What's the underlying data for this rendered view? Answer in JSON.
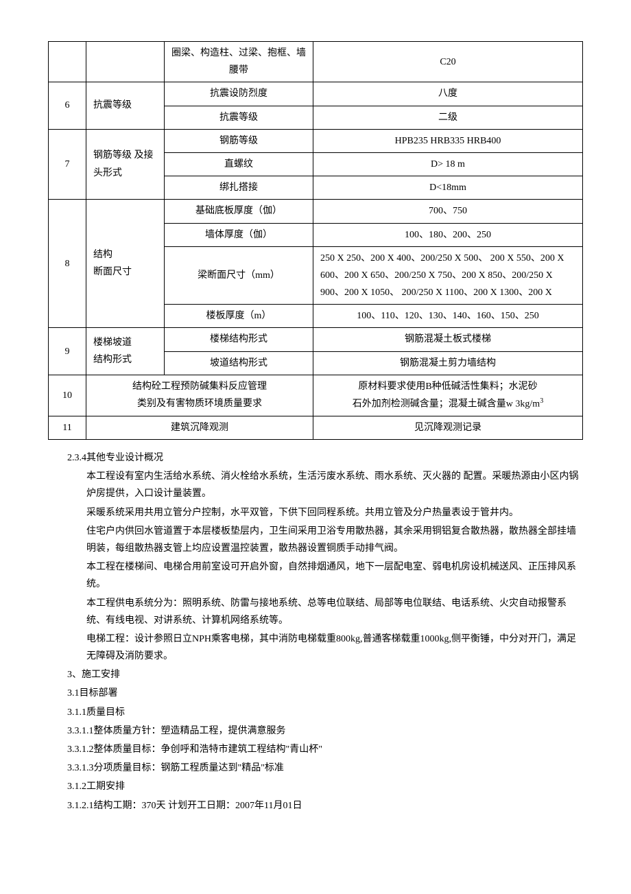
{
  "table": {
    "rows": [
      {
        "num": "",
        "cat": "",
        "sub": "圈梁、构造柱、过梁、抱框、墙腰带",
        "val": "C20"
      },
      {
        "num": "6",
        "cat": "抗震等级",
        "rowspan": 2,
        "sub": "抗震设防烈度",
        "val": "八度"
      },
      {
        "sub": "抗震等级",
        "val": "二级"
      },
      {
        "num": "7",
        "cat": "钢筋等级 及接头形式",
        "rowspan": 3,
        "sub": "钢筋等级",
        "val": "HPB235 HRB335 HRB400"
      },
      {
        "sub": "直螺纹",
        "val": "D> 18 m"
      },
      {
        "sub": "绑扎搭接",
        "val": "D<18mm"
      },
      {
        "num": "8",
        "cat": "结构\n断面尺寸",
        "rowspan": 4,
        "sub": "基础底板厚度（伽）",
        "val": "700、750"
      },
      {
        "sub": "墙体厚度（伽）",
        "val": "100、180、200、250"
      },
      {
        "sub": "梁断面尺寸（mm）",
        "val": "250 X 250、200 X 400、200/250 X 500、 200 X 550、200 X 600、200 X 650、200/250 X 750、200 X 850、200/250 X 900、200 X 1050、 200/250 X 1100、200 X 1300、200 X",
        "leftAlign": true
      },
      {
        "sub": "楼板厚度（m）",
        "val": "100、110、120、130、140、160、150、250"
      },
      {
        "num": "9",
        "cat": "楼梯坡道\n结构形式",
        "rowspan": 2,
        "sub": "楼梯结构形式",
        "val": "钢筋混凝土板式楼梯"
      },
      {
        "sub": "坡道结构形式",
        "val": "钢筋混凝土剪力墙结构"
      },
      {
        "num": "10",
        "merge": true,
        "sub": "结构砼工程预防碱集料反应管理\n类别及有害物质环境质量要求",
        "val": "原材料要求使用B种低碱活性集料；水泥砂\n石外加剂检测碱含量；混凝土碱含量w 3kg/m³"
      },
      {
        "num": "11",
        "merge": true,
        "sub": "建筑沉降观测",
        "val": "见沉降观测记录"
      }
    ]
  },
  "text": {
    "h234": "2.3.4其他专业设计概况",
    "p1": "本工程设有室内生活给水系统、消火栓给水系统，生活污废水系统、雨水系统、灭火器的 配置。采暖热源由小区内锅炉房提供，入口设计量装置。",
    "p2": "采暖系统采用共用立管分户控制，水平双管，下供下回同程系统。共用立管及分户热量表设于管井内。",
    "p3": "住宅户内供回水管道置于本层楼板垫层内，卫生间采用卫浴专用散热器，其余采用铜铝复合散热器，散热器全部挂墙明装，每组散热器支管上均应设置温控装置，散热器设置铜质手动排气阀。",
    "p4": "本工程在楼梯间、电梯合用前室设可开启外窗，自然排烟通风，地下一层配电室、弱电机房设机械送风、正压排风系统。",
    "p5": "本工程供电系统分为：照明系统、防雷与接地系统、总等电位联结、局部等电位联结、电话系统、火灾自动报警系统、有线电视、对讲系统、计算机网络系统等。",
    "p6": "电梯工程：设计参照日立NPH乘客电梯，其中消防电梯载重800kg,普通客梯载重1000kg,侧平衡锤，中分对开门，满足无障碍及消防要求。",
    "h3": "3、施工安排",
    "h31": "3.1目标部署",
    "h311": "3.1.1质量目标",
    "h3311": "3.3.1.1整体质量方针：塑造精品工程，提供满意服务",
    "h3312": "3.3.1.2整体质量目标：争创呼和浩特市建筑工程结构\"青山杯\"",
    "h3313": "3.3.1.3分项质量目标：钢筋工程质量达到\"精品\"标准",
    "h312": "3.1.2工期安排",
    "h3121": "3.1.2.1结构工期：370天 计划开工日期：2007年11月01日"
  }
}
